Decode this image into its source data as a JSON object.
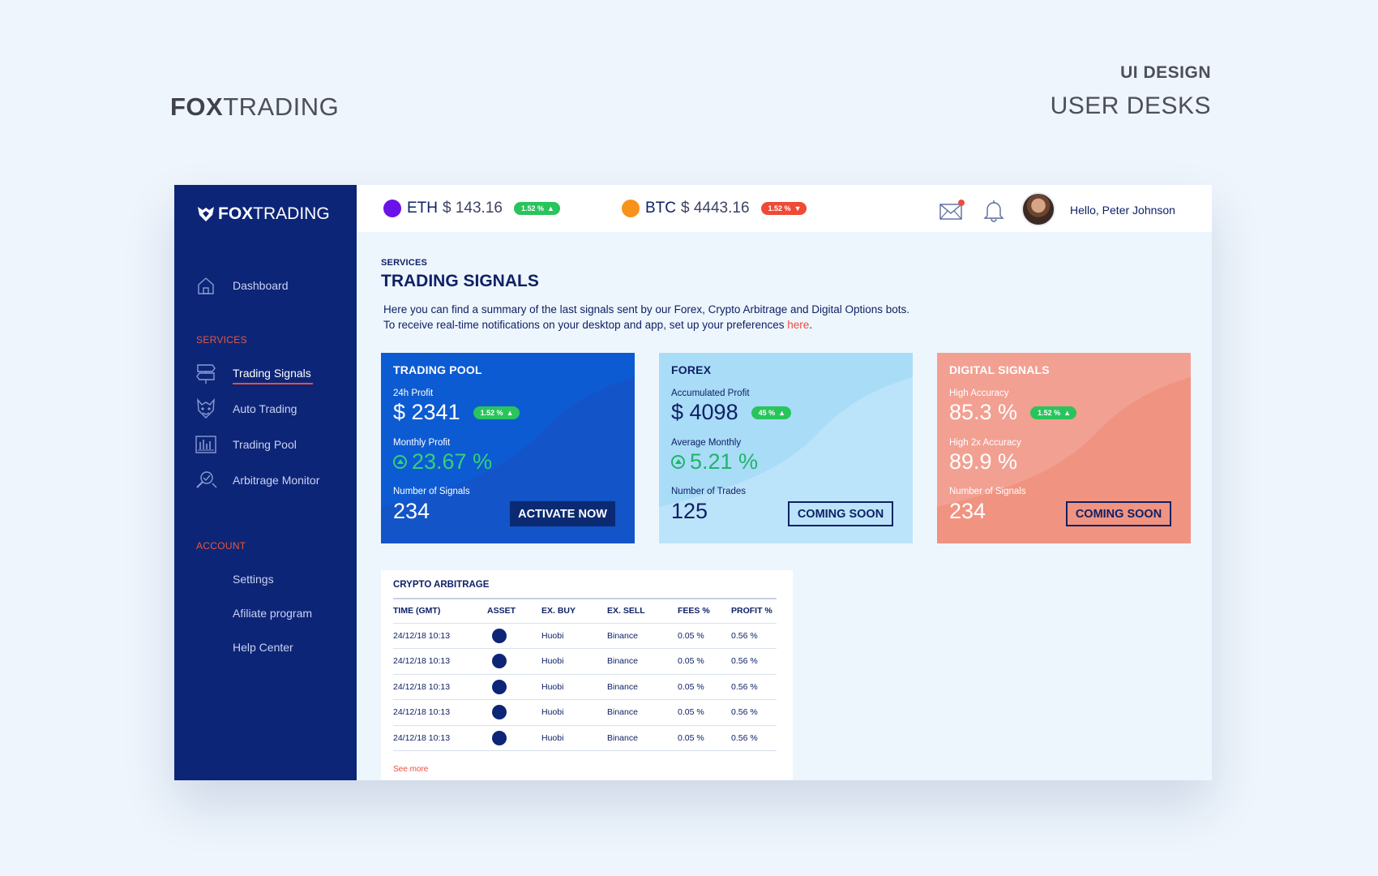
{
  "presentation": {
    "brand_bold": "FOX",
    "brand_light": "TRADING",
    "deck_line1": "UI DESIGN",
    "deck_line2": "USER DESKS"
  },
  "sidebar": {
    "logo_bold": "FOX",
    "logo_light": "TRADING",
    "dashboard": "Dashboard",
    "services_label": "SERVICES",
    "services": [
      {
        "label": "Trading Signals",
        "icon": "signpost-icon",
        "active": true
      },
      {
        "label": "Auto Trading",
        "icon": "robot-fox-icon"
      },
      {
        "label": "Trading Pool",
        "icon": "bar-chart-icon"
      },
      {
        "label": "Arbitrage Monitor",
        "icon": "magnifier-icon"
      }
    ],
    "account_label": "ACCOUNT",
    "account": [
      {
        "label": "Settings"
      },
      {
        "label": "Afiliate program"
      },
      {
        "label": "Help Center"
      }
    ]
  },
  "topbar": {
    "eth": {
      "symbol": "ETH",
      "price": "$ 143.16",
      "change": "1.52 %",
      "dir": "up",
      "color": "#6a12e8"
    },
    "btc": {
      "symbol": "BTC",
      "price": "$ 4443.16",
      "change": "1.52 %",
      "dir": "down",
      "color": "#f7931a"
    },
    "greeting": "Hello, Peter Johnson"
  },
  "main": {
    "breadcrumb": "SERVICES",
    "title": "TRADING SIGNALS",
    "desc_line1": "Here you can find a summary of the last signals sent by our Forex, Crypto Arbitrage and Digital Options bots.",
    "desc_line2": "To receive real-time notifications on your desktop and app, set up your preferences ",
    "desc_link": "here",
    "desc_end": "."
  },
  "cards": {
    "pool": {
      "title": "TRADING POOL",
      "l1": "24h Profit",
      "v1": "$ 2341",
      "pill": "1.52 %",
      "l2": "Monthly Profit",
      "v2": "23.67 %",
      "l3": "Number of Signals",
      "v3": "234",
      "button": "ACTIVATE NOW"
    },
    "forex": {
      "title": "FOREX",
      "l1": "Accumulated Profit",
      "v1": "$ 4098",
      "pill": "45 %",
      "l2": "Average Monthly",
      "v2": "5.21 %",
      "l3": "Number of Trades",
      "v3": "125",
      "button": "COMING SOON"
    },
    "digital": {
      "title": "DIGITAL SIGNALS",
      "l1": "High Accuracy",
      "v1": "85.3 %",
      "pill": "1.52 %",
      "l2": "High 2x Accuracy",
      "v2": "89.9 %",
      "l3": "Number of Signals",
      "v3": "234",
      "button": "COMING SOON"
    }
  },
  "arbitrage": {
    "title": "CRYPTO ARBITRAGE",
    "columns": [
      "TIME (GMT)",
      "ASSET",
      "EX. BUY",
      "EX. SELL",
      "FEES %",
      "PROFIT %"
    ],
    "rows": [
      {
        "time": "24/12/18 10:13",
        "buy": "Huobi",
        "sell": "Binance",
        "fees": "0.05 %",
        "profit": "0.56 %"
      },
      {
        "time": "24/12/18 10:13",
        "buy": "Huobi",
        "sell": "Binance",
        "fees": "0.05 %",
        "profit": "0.56 %"
      },
      {
        "time": "24/12/18 10:13",
        "buy": "Huobi",
        "sell": "Binance",
        "fees": "0.05 %",
        "profit": "0.56 %"
      },
      {
        "time": "24/12/18 10:13",
        "buy": "Huobi",
        "sell": "Binance",
        "fees": "0.05 %",
        "profit": "0.56 %"
      },
      {
        "time": "24/12/18 10:13",
        "buy": "Huobi",
        "sell": "Binance",
        "fees": "0.05 %",
        "profit": "0.56 %"
      }
    ],
    "see_more": "See more"
  }
}
